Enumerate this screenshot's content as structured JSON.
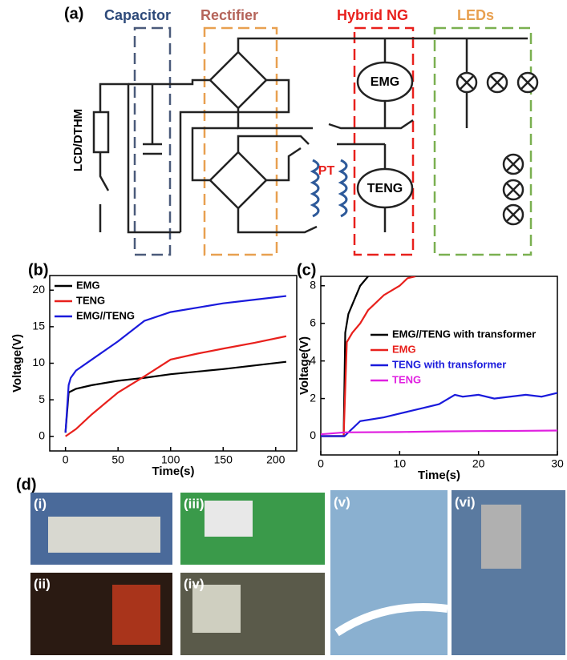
{
  "panels": {
    "a": "(a)",
    "b": "(b)",
    "c": "(c)",
    "d": "(d)"
  },
  "circuit": {
    "capacitor": "Capacitor",
    "rectifier": "Rectifier",
    "hybrid": "Hybrid NG",
    "leds": "LEDs",
    "lcd": "LCD/DTHM",
    "emg": "EMG",
    "teng": "TENG",
    "pt": "PT"
  },
  "photos": [
    "(i)",
    "(ii)",
    "(iii)",
    "(iv)",
    "(v)",
    "(vi)"
  ],
  "chart_data": [
    {
      "type": "line",
      "x_label": "Time(s)",
      "y_label": "Voltage(V)",
      "xlim": [
        -15,
        220
      ],
      "ylim": [
        -2,
        22
      ],
      "xticks": [
        0,
        50,
        100,
        150,
        200
      ],
      "yticks": [
        0,
        5,
        10,
        15,
        20
      ],
      "series": [
        {
          "name": "EMG",
          "color": "#000000",
          "x": [
            0,
            3,
            10,
            25,
            50,
            75,
            100,
            150,
            210
          ],
          "values": [
            0.5,
            6,
            6.5,
            7,
            7.6,
            8,
            8.5,
            9.2,
            10.2
          ]
        },
        {
          "name": "TENG",
          "color": "#e8201c",
          "x": [
            0,
            10,
            25,
            50,
            75,
            100,
            125,
            150,
            180,
            210
          ],
          "values": [
            0,
            1,
            3,
            6,
            8.2,
            10.5,
            11.3,
            12,
            12.8,
            13.7
          ]
        },
        {
          "name": "EMG//TENG",
          "color": "#1a1adc",
          "x": [
            0,
            3,
            5,
            10,
            25,
            50,
            75,
            100,
            125,
            150,
            180,
            210
          ],
          "values": [
            0.5,
            7,
            8,
            9,
            10.5,
            13,
            15.8,
            17,
            17.6,
            18.2,
            18.7,
            19.2
          ]
        }
      ]
    },
    {
      "type": "line",
      "x_label": "Time(s)",
      "y_label": "Voltage(V)",
      "xlim": [
        0,
        30
      ],
      "ylim": [
        -1,
        8.5
      ],
      "xticks": [
        0,
        10,
        20,
        30
      ],
      "yticks": [
        0,
        2,
        4,
        6,
        8
      ],
      "series": [
        {
          "name": "EMG//TENG with transformer",
          "color": "#000000",
          "x": [
            0,
            2.9,
            3.1,
            3.5,
            4,
            5,
            6
          ],
          "values": [
            0,
            0,
            5.5,
            6.5,
            7,
            8,
            8.5
          ]
        },
        {
          "name": "EMG",
          "color": "#e8201c",
          "x": [
            0,
            2.9,
            3.3,
            4,
            5,
            6,
            8,
            10,
            11,
            12
          ],
          "values": [
            0,
            0,
            5,
            5.5,
            6,
            6.7,
            7.5,
            8,
            8.4,
            8.5
          ]
        },
        {
          "name": "TENG with transformer",
          "color": "#1a1adc",
          "x": [
            0,
            3,
            5,
            8,
            10,
            13,
            15,
            17,
            18,
            20,
            22,
            24,
            26,
            28,
            30
          ],
          "values": [
            0,
            0,
            0.8,
            1,
            1.2,
            1.5,
            1.7,
            2.2,
            2.1,
            2.2,
            2,
            2.1,
            2.2,
            2.1,
            2.3
          ]
        },
        {
          "name": "TENG",
          "color": "#e020e0",
          "x": [
            0,
            3,
            10,
            15,
            20,
            25,
            30
          ],
          "values": [
            0.1,
            0.2,
            0.22,
            0.25,
            0.27,
            0.28,
            0.3
          ]
        }
      ]
    }
  ]
}
